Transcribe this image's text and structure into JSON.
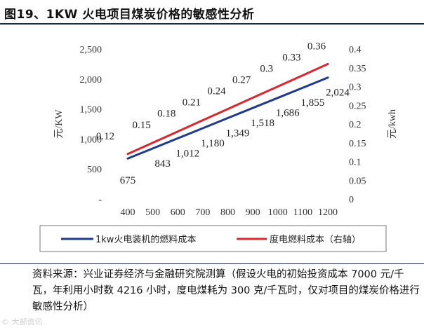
{
  "title": "图19、1KW 火电项目煤炭价格的敏感性分析",
  "source_note": "资料来源：兴业证券经济与金融研究院测算（假设火电的初始投资成本 7000 元/千瓦，年利用小时数 4216 小时，度电煤耗为 300 克/千瓦时，仅对项目的煤炭价格进行敏感性分析）",
  "watermark": "© 大部资讯",
  "chart_data": {
    "type": "line",
    "x": [
      400,
      500,
      600,
      700,
      800,
      900,
      1000,
      1100,
      1200
    ],
    "x_tick_labels": [
      "400",
      "500",
      "600",
      "700",
      "800",
      "900",
      "1000",
      "1100",
      "1200"
    ],
    "ylabel_left": "元/KW",
    "ylabel_right": "元/kwh",
    "ylim_left": [
      0,
      2500
    ],
    "ylim_right": [
      0,
      0.4
    ],
    "y_ticks_left": [
      "-",
      "500",
      "1,000",
      "1,500",
      "2,000",
      "2,500"
    ],
    "y_ticks_right": [
      "0",
      "0.05",
      "0.1",
      "0.15",
      "0.2",
      "0.25",
      "0.3",
      "0.35",
      "0.4"
    ],
    "grid": false,
    "legend_position": "bottom",
    "series": [
      {
        "name": "1kw火电装机的燃料成本",
        "axis": "left",
        "color": "#1f3a8a",
        "values": [
          675,
          843,
          1012,
          1180,
          1349,
          1518,
          1686,
          1855,
          2024
        ],
        "labels": [
          "675",
          "843",
          "1,012",
          "1,180",
          "1,349",
          "1,518",
          "1,686",
          "1,855",
          "2,024"
        ]
      },
      {
        "name": "度电燃料成本（右轴）",
        "axis": "right",
        "color": "#d7282f",
        "values": [
          0.12,
          0.15,
          0.18,
          0.21,
          0.24,
          0.27,
          0.3,
          0.33,
          0.36
        ],
        "labels": [
          "0.12",
          "0.15",
          "0.18",
          "0.21",
          "0.24",
          "0.27",
          "0.3",
          "0.33",
          "0.36"
        ]
      }
    ]
  }
}
